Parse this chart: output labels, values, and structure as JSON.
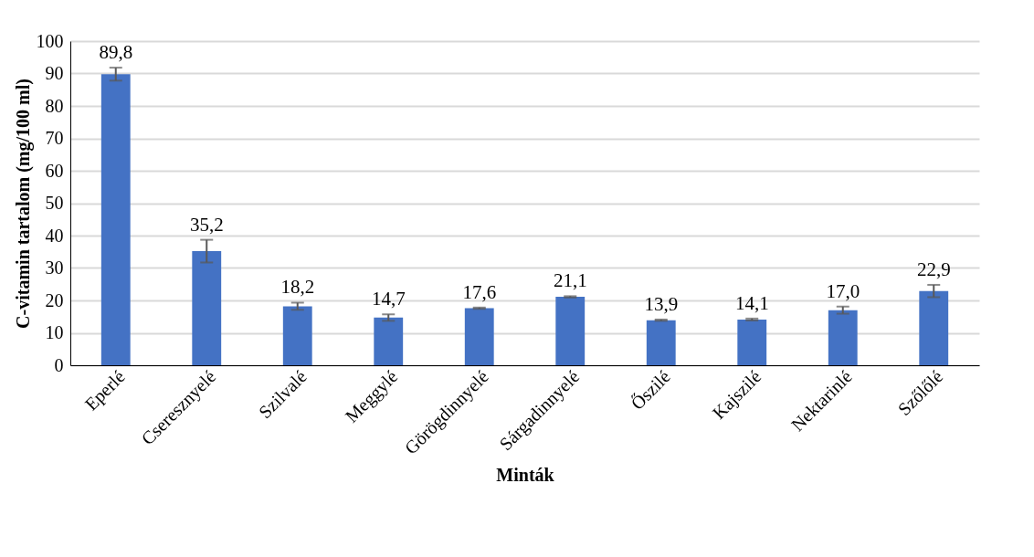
{
  "chart_data": {
    "type": "bar",
    "xlabel": "Minták",
    "ylabel": "C-vitamin tartalom (mg/100 ml)",
    "categories": [
      "Eperlé",
      "Cseresznyelé",
      "Szilvalé",
      "Meggylé",
      "Görögdinnyelé",
      "Sárgadinnyelé",
      "Őszilé",
      "Kajszilé",
      "Nektarinlé",
      "Szőlőlé"
    ],
    "values": [
      89.8,
      35.2,
      18.2,
      14.7,
      17.6,
      21.1,
      13.9,
      14.1,
      17.0,
      22.9
    ],
    "errors": [
      2.0,
      3.5,
      1.1,
      1.0,
      0.2,
      0.2,
      0.2,
      0.3,
      1.1,
      1.9
    ],
    "value_labels": [
      "89,8",
      "35,2",
      "18,2",
      "14,7",
      "17,6",
      "21,1",
      "13,9",
      "14,1",
      "17,0",
      "22,9"
    ],
    "color": "#4472c4",
    "ylim": [
      0,
      100
    ],
    "yticks": [
      0,
      10,
      20,
      30,
      40,
      50,
      60,
      70,
      80,
      90,
      100
    ],
    "grid": "y"
  }
}
